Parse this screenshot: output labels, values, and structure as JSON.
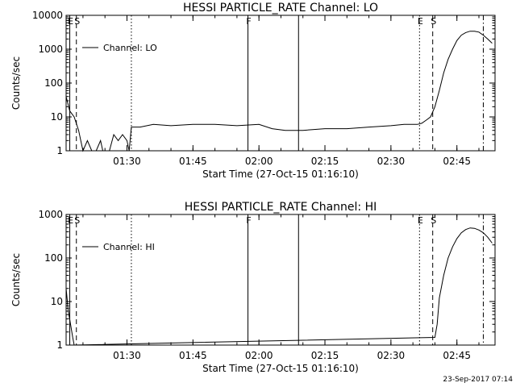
{
  "chart_data": [
    {
      "type": "line",
      "title": "HESSI PARTICLE_RATE Channel: LO",
      "xlabel": "Start Time (27-Oct-15 01:16:10)",
      "ylabel": "Counts/sec",
      "xlim": [
        "01:16:10",
        "02:53:40"
      ],
      "ylim": [
        1,
        10000
      ],
      "yscale": "log",
      "x_ticks": [
        "01:30",
        "01:45",
        "02:00",
        "02:15",
        "02:30",
        "02:45"
      ],
      "y_ticks": [
        "1",
        "10",
        "100",
        "1000",
        "10000"
      ],
      "legend": "top-left",
      "grid": false,
      "series": [
        {
          "name": "Channel: LO",
          "x": [
            "01:16:10",
            "01:17:00",
            "01:18:00",
            "01:19:00",
            "01:19:30",
            "01:20:00",
            "01:21:00",
            "01:22:00",
            "01:23:00",
            "01:24:00",
            "01:24:30",
            "01:25:00",
            "01:26:00",
            "01:27:00",
            "01:28:00",
            "01:29:00",
            "01:30:00",
            "01:30:30",
            "01:31:00",
            "01:33:00",
            "01:36:00",
            "01:40:00",
            "01:45:00",
            "01:50:00",
            "01:55:00",
            "02:00:00",
            "02:03:00",
            "02:06:00",
            "02:10:00",
            "02:15:00",
            "02:20:00",
            "02:25:00",
            "02:30:00",
            "02:33:00",
            "02:36:00",
            "02:37:00",
            "02:38:00",
            "02:39:00",
            "02:40:00",
            "02:41:00",
            "02:42:00",
            "02:43:00",
            "02:44:00",
            "02:45:00",
            "02:46:00",
            "02:47:00",
            "02:48:00",
            "02:49:00",
            "02:50:00",
            "02:51:00",
            "02:52:00",
            "02:53:00"
          ],
          "values": [
            40,
            15,
            10,
            4,
            2,
            1,
            2,
            1,
            1,
            2,
            1,
            1,
            1,
            3,
            2,
            3,
            2,
            1,
            5,
            5,
            6,
            5.5,
            6,
            6,
            5.5,
            6,
            4.5,
            4,
            4,
            4.5,
            4.5,
            5,
            5.5,
            6,
            6,
            6.5,
            8,
            10,
            20,
            60,
            200,
            500,
            1000,
            1800,
            2600,
            3100,
            3400,
            3400,
            3200,
            2600,
            2000,
            1500
          ]
        }
      ],
      "vertical_lines": [
        {
          "time": "01:17:00",
          "style": "solid",
          "label": "E"
        },
        {
          "time": "01:18:30",
          "style": "dashed",
          "label": "S"
        },
        {
          "time": "01:31:00",
          "style": "dotted",
          "label": ""
        },
        {
          "time": "01:57:30",
          "style": "solid",
          "label": "F"
        },
        {
          "time": "02:09:00",
          "style": "solid",
          "label": ""
        },
        {
          "time": "02:36:30",
          "style": "dotted",
          "label": "E"
        },
        {
          "time": "02:39:30",
          "style": "dashed",
          "label": "S"
        },
        {
          "time": "02:51:00",
          "style": "dashdot",
          "label": ""
        }
      ]
    },
    {
      "type": "line",
      "title": "HESSI PARTICLE_RATE Channel: HI",
      "xlabel": "Start Time (27-Oct-15 01:16:10)",
      "ylabel": "Counts/sec",
      "xlim": [
        "01:16:10",
        "02:53:40"
      ],
      "ylim": [
        1,
        1000
      ],
      "yscale": "log",
      "x_ticks": [
        "01:30",
        "01:45",
        "02:00",
        "02:15",
        "02:30",
        "02:45"
      ],
      "y_ticks": [
        "1",
        "10",
        "100",
        "1000"
      ],
      "legend": "top-left",
      "grid": false,
      "series": [
        {
          "name": "Channel: HI",
          "x": [
            "01:16:10",
            "01:16:40",
            "01:17:10",
            "01:17:40",
            "01:18:00",
            "02:40:00",
            "02:40:30",
            "02:41:00",
            "02:42:00",
            "02:43:00",
            "02:44:00",
            "02:45:00",
            "02:46:00",
            "02:47:00",
            "02:48:00",
            "02:49:00",
            "02:50:00",
            "02:51:00",
            "02:52:00",
            "02:53:00"
          ],
          "values": [
            20,
            6,
            3,
            1.5,
            1,
            1.5,
            3,
            12,
            40,
            100,
            180,
            280,
            380,
            450,
            490,
            480,
            440,
            380,
            300,
            220
          ]
        }
      ],
      "vertical_lines": [
        {
          "time": "01:17:00",
          "style": "solid",
          "label": "E"
        },
        {
          "time": "01:18:30",
          "style": "dashed",
          "label": "S"
        },
        {
          "time": "01:31:00",
          "style": "dotted",
          "label": ""
        },
        {
          "time": "01:57:30",
          "style": "solid",
          "label": "F"
        },
        {
          "time": "02:09:00",
          "style": "solid",
          "label": ""
        },
        {
          "time": "02:36:30",
          "style": "dotted",
          "label": "E"
        },
        {
          "time": "02:39:30",
          "style": "dashed",
          "label": "S"
        },
        {
          "time": "02:51:00",
          "style": "dashdot",
          "label": ""
        }
      ]
    }
  ],
  "footer": {
    "timestamp": "23-Sep-2017 07:14"
  }
}
